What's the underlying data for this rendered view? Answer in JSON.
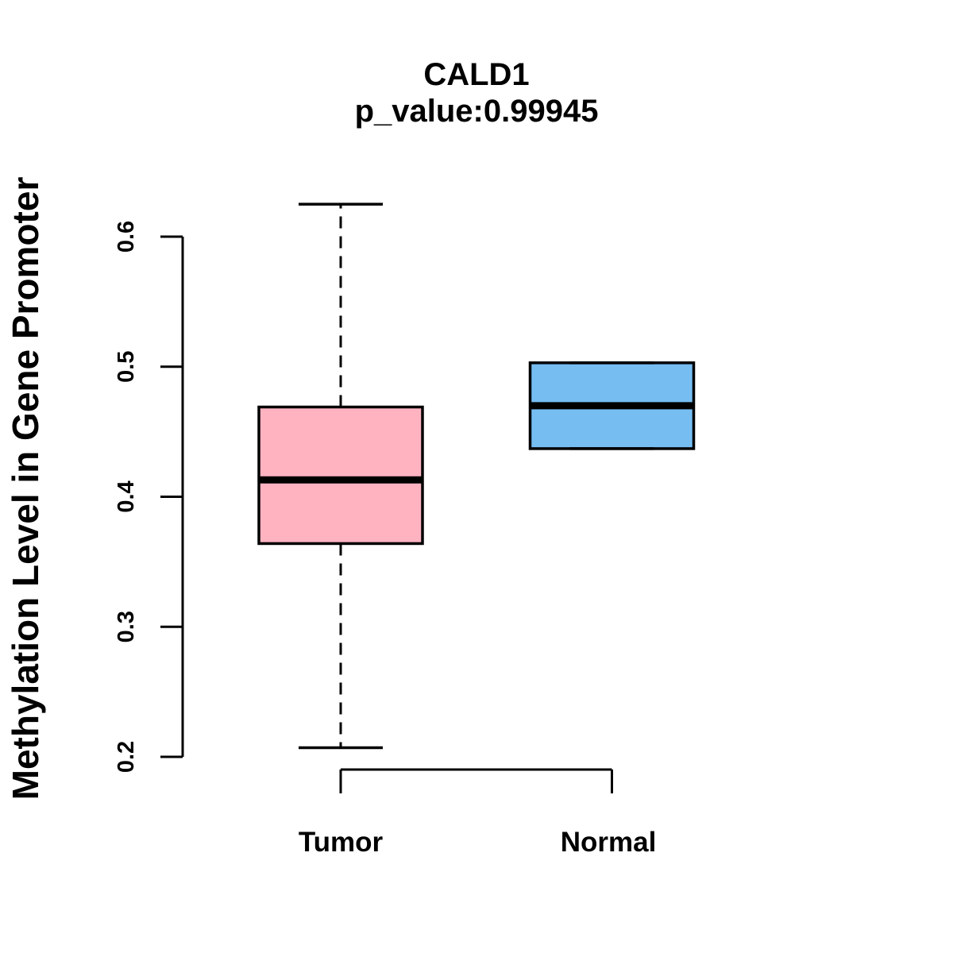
{
  "p_value": "0.99945",
  "chart_data": {
    "type": "boxplot",
    "title": "CALD1",
    "subtitle": "p_value:0.99945",
    "xlabel": "",
    "ylabel": "Methylation Level in Gene Promoter",
    "ylim": [
      0.2,
      0.6
    ],
    "y_ticks": [
      0.2,
      0.3,
      0.4,
      0.5,
      0.6
    ],
    "y_tick_labels": [
      "0.2",
      "0.3",
      "0.4",
      "0.5",
      "0.6"
    ],
    "grid": "off",
    "legend": "none",
    "groups": [
      {
        "label": "Tumor",
        "fill_color": "#ffb3c1",
        "border_color": "#000000",
        "whisker_low": 0.207,
        "q1": 0.364,
        "median": 0.413,
        "q3": 0.469,
        "whisker_high": 0.625
      },
      {
        "label": "Normal",
        "fill_color": "#76bdf2",
        "border_color": "#000000",
        "whisker_low": 0.437,
        "q1": 0.437,
        "median": 0.47,
        "q3": 0.503,
        "whisker_high": 0.503
      }
    ]
  }
}
